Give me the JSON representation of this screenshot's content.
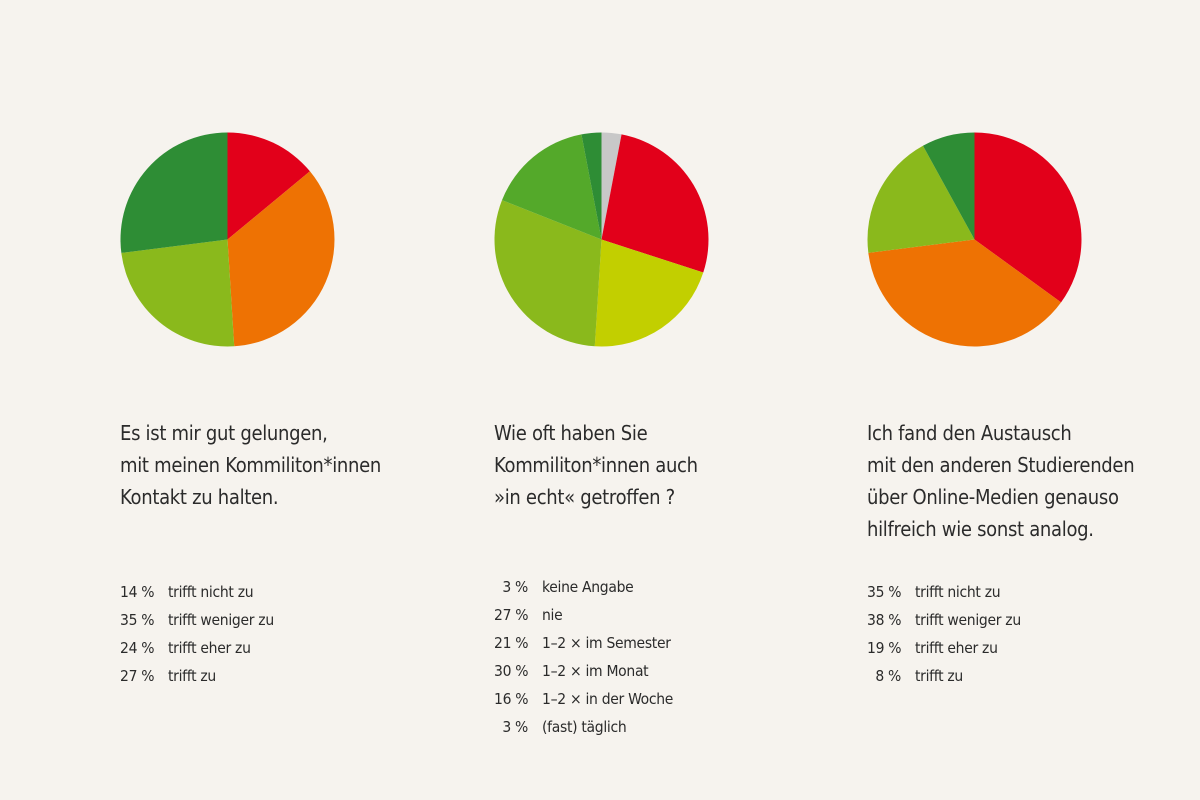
{
  "colors": {
    "red": "#e2001a",
    "orange": "#ee7203",
    "yellow_green": "#c2cf00",
    "light_green": "#8ab91c",
    "mid_green": "#54a92a",
    "dark_green": "#2e8d35",
    "gray": "#c8c8c8",
    "background": "#f6f3ee"
  },
  "chart_data": [
    {
      "type": "pie",
      "question_lines": [
        "Es ist mir gut gelungen,",
        "mit meinen Kommiliton*innen",
        "Kontakt zu halten."
      ],
      "slices": [
        {
          "label": "trifft nicht zu",
          "pct_label": "14 %",
          "value": 14,
          "color": "#e2001a"
        },
        {
          "label": "trifft weniger zu",
          "pct_label": "35 %",
          "value": 35,
          "color": "#ee7203"
        },
        {
          "label": "trifft eher zu",
          "pct_label": "24 %",
          "value": 24,
          "color": "#8ab91c"
        },
        {
          "label": "trifft zu",
          "pct_label": "27 %",
          "value": 27,
          "color": "#2e8d35"
        }
      ]
    },
    {
      "type": "pie",
      "question_lines": [
        "Wie oft haben Sie",
        "Kommiliton*innen auch",
        "»in echt« getroffen ?"
      ],
      "slices": [
        {
          "label": "keine Angabe",
          "pct_label": "3 %",
          "value": 3,
          "color": "#c8c8c8"
        },
        {
          "label": "nie",
          "pct_label": "27 %",
          "value": 27,
          "color": "#e2001a"
        },
        {
          "label": "1–2 × im Semester",
          "pct_label": "21 %",
          "value": 21,
          "color": "#c2cf00"
        },
        {
          "label": "1–2 × im Monat",
          "pct_label": "30 %",
          "value": 30,
          "color": "#8ab91c"
        },
        {
          "label": "1–2 × in der Woche",
          "pct_label": "16 %",
          "value": 16,
          "color": "#54a92a"
        },
        {
          "label": "(fast) täglich",
          "pct_label": "3 %",
          "value": 3,
          "color": "#2e8d35"
        }
      ]
    },
    {
      "type": "pie",
      "question_lines": [
        "Ich fand den Austausch",
        "mit den anderen Studierenden",
        "über Online-Medien genauso",
        "hilfreich wie sonst analog."
      ],
      "slices": [
        {
          "label": "trifft nicht zu",
          "pct_label": "35 %",
          "value": 35,
          "color": "#e2001a"
        },
        {
          "label": "trifft weniger zu",
          "pct_label": "38 %",
          "value": 38,
          "color": "#ee7203"
        },
        {
          "label": "trifft eher zu",
          "pct_label": "19 %",
          "value": 19,
          "color": "#8ab91c"
        },
        {
          "label": "trifft zu",
          "pct_label": "8 %",
          "value": 8,
          "color": "#2e8d35"
        }
      ]
    }
  ]
}
